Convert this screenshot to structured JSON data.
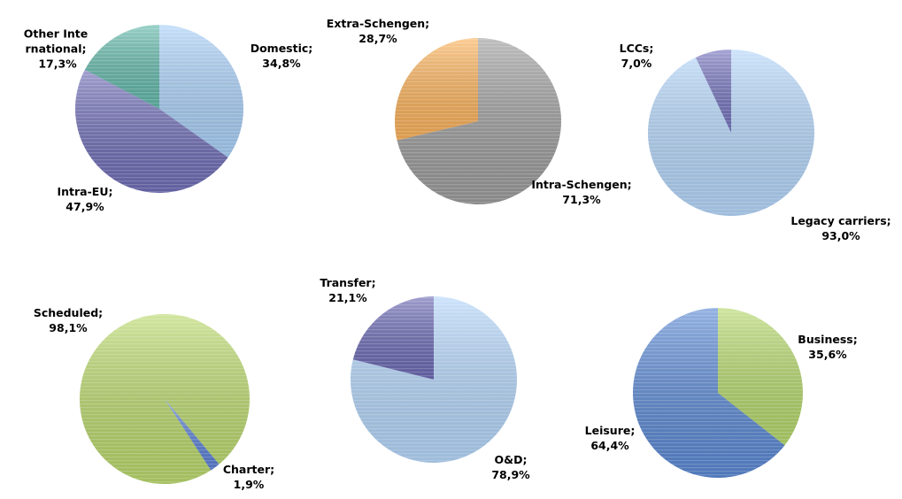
{
  "chart_data": [
    {
      "type": "pie",
      "categories": [
        "Domestic;",
        "Intra-EU;",
        "Other International;"
      ],
      "values": [
        34.8,
        47.9,
        17.3
      ],
      "value_labels": [
        "34,8%",
        "47,9%",
        "17,3%"
      ],
      "colors": [
        "#a9d0f8",
        "#6f6db6",
        "#62b8aa"
      ]
    },
    {
      "type": "pie",
      "categories": [
        "Intra-Schengen;",
        "Extra-Schengen;"
      ],
      "values": [
        71.3,
        28.7
      ],
      "value_labels": [
        "71,3%",
        "28,7%"
      ],
      "colors": [
        "#9c9c9c",
        "#fbb25a"
      ]
    },
    {
      "type": "pie",
      "categories": [
        "Legacy carriers;",
        "LCCs;"
      ],
      "values": [
        93.0,
        7.0
      ],
      "value_labels": [
        "93,0%",
        "7,0%"
      ],
      "colors": [
        "#b4d6fa",
        "#7573bd"
      ]
    },
    {
      "type": "pie",
      "categories": [
        "Scheduled;",
        "Charter;"
      ],
      "values": [
        98.1,
        1.9
      ],
      "value_labels": [
        "98,1%",
        "1,9%"
      ],
      "colors": [
        "#bad96c",
        "#5b80d6"
      ]
    },
    {
      "type": "pie",
      "categories": [
        "O&D;",
        "Transfer;"
      ],
      "values": [
        78.9,
        21.1
      ],
      "value_labels": [
        "78,9%",
        "21,1%"
      ],
      "colors": [
        "#b4d6fa",
        "#6c6ab4"
      ]
    },
    {
      "type": "pie",
      "categories": [
        "Business;",
        "Leisure;"
      ],
      "values": [
        35.6,
        64.4
      ],
      "value_labels": [
        "35,6%",
        "64,4%"
      ],
      "colors": [
        "#b5d86b",
        "#5b89d4"
      ]
    }
  ]
}
